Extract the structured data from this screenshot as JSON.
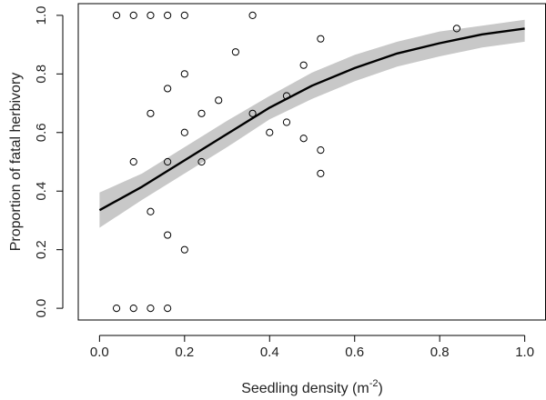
{
  "chart_data": {
    "type": "scatter",
    "xlabel": "Seedling density (m",
    "xlabel_sup": "-2",
    "xlabel_end": ")",
    "ylabel": "Proportion of fatal herbivory",
    "xlim": [
      -0.05,
      1.05
    ],
    "ylim": [
      -0.04,
      1.04
    ],
    "x_ticks": [
      0.0,
      0.2,
      0.4,
      0.6,
      0.8,
      1.0
    ],
    "x_tick_labels": [
      "0.0",
      "0.2",
      "0.4",
      "0.6",
      "0.8",
      "1.0"
    ],
    "y_ticks": [
      0.0,
      0.2,
      0.4,
      0.6,
      0.8,
      1.0
    ],
    "y_tick_labels": [
      "0.0",
      "0.2",
      "0.4",
      "0.6",
      "0.8",
      "1.0"
    ],
    "grid": false,
    "colors": {
      "band": "#c8c8c8",
      "line": "#000000",
      "point": "#000000"
    },
    "points": [
      {
        "x": 0.04,
        "y": 1.0
      },
      {
        "x": 0.08,
        "y": 1.0
      },
      {
        "x": 0.12,
        "y": 1.0
      },
      {
        "x": 0.16,
        "y": 1.0
      },
      {
        "x": 0.2,
        "y": 1.0
      },
      {
        "x": 0.36,
        "y": 1.0
      },
      {
        "x": 0.32,
        "y": 0.875
      },
      {
        "x": 0.52,
        "y": 0.92
      },
      {
        "x": 0.84,
        "y": 0.955
      },
      {
        "x": 0.2,
        "y": 0.8
      },
      {
        "x": 0.48,
        "y": 0.83
      },
      {
        "x": 0.16,
        "y": 0.75
      },
      {
        "x": 0.28,
        "y": 0.71
      },
      {
        "x": 0.44,
        "y": 0.725
      },
      {
        "x": 0.12,
        "y": 0.665
      },
      {
        "x": 0.24,
        "y": 0.665
      },
      {
        "x": 0.36,
        "y": 0.665
      },
      {
        "x": 0.44,
        "y": 0.635
      },
      {
        "x": 0.2,
        "y": 0.6
      },
      {
        "x": 0.4,
        "y": 0.6
      },
      {
        "x": 0.48,
        "y": 0.58
      },
      {
        "x": 0.52,
        "y": 0.54
      },
      {
        "x": 0.08,
        "y": 0.5
      },
      {
        "x": 0.16,
        "y": 0.5
      },
      {
        "x": 0.24,
        "y": 0.5
      },
      {
        "x": 0.52,
        "y": 0.46
      },
      {
        "x": 0.12,
        "y": 0.33
      },
      {
        "x": 0.16,
        "y": 0.25
      },
      {
        "x": 0.2,
        "y": 0.2
      },
      {
        "x": 0.04,
        "y": 0.0
      },
      {
        "x": 0.08,
        "y": 0.0
      },
      {
        "x": 0.12,
        "y": 0.0
      },
      {
        "x": 0.16,
        "y": 0.0
      }
    ],
    "fit_curve": {
      "x": [
        0.0,
        0.1,
        0.2,
        0.3,
        0.4,
        0.5,
        0.6,
        0.7,
        0.8,
        0.9,
        1.0
      ],
      "y": [
        0.335,
        0.415,
        0.505,
        0.595,
        0.685,
        0.76,
        0.82,
        0.87,
        0.905,
        0.935,
        0.955
      ],
      "ci_lower": [
        0.275,
        0.37,
        0.46,
        0.55,
        0.645,
        0.715,
        0.775,
        0.825,
        0.86,
        0.89,
        0.91
      ],
      "ci_upper": [
        0.395,
        0.46,
        0.55,
        0.64,
        0.725,
        0.805,
        0.865,
        0.91,
        0.945,
        0.965,
        0.985
      ]
    }
  }
}
